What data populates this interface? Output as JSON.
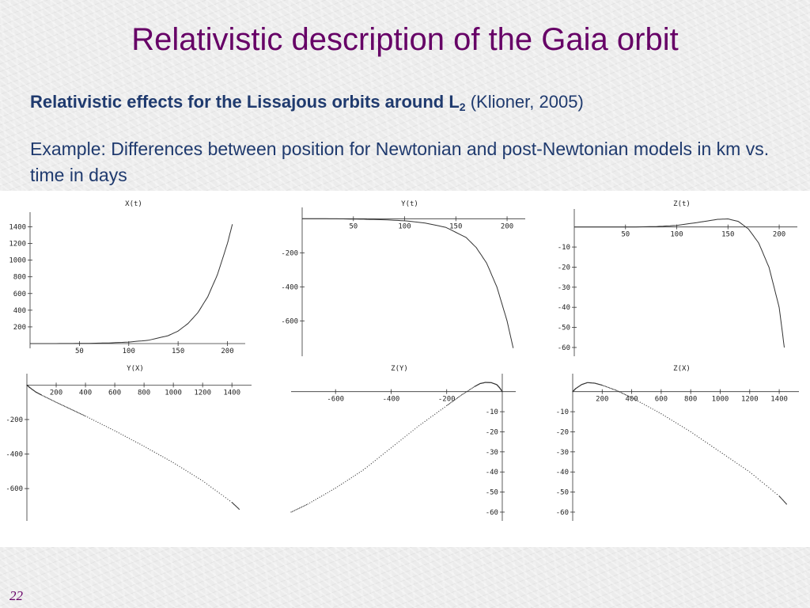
{
  "slide": {
    "title": "Relativistic description of the Gaia orbit",
    "subtitle_bold": "Relativistic effects for the Lissajous orbits around L",
    "subtitle_sub": "2",
    "subtitle_rest": " (Klioner, 2005)",
    "description": "Example: Differences between position for Newtonian and post-Newtonian models in km vs. time in days",
    "page_number": "22"
  },
  "chart_data": [
    {
      "type": "line",
      "title": "X(t)",
      "xlim": [
        0,
        210
      ],
      "ylim": [
        0,
        1480
      ],
      "xticks": [
        50,
        100,
        150,
        200
      ],
      "yticks": [
        200,
        400,
        600,
        800,
        1000,
        1200,
        1400
      ],
      "x": [
        0,
        20,
        40,
        60,
        80,
        100,
        120,
        140,
        150,
        160,
        170,
        180,
        190,
        200,
        205
      ],
      "y": [
        0,
        0,
        1,
        3,
        8,
        18,
        40,
        95,
        150,
        240,
        370,
        560,
        830,
        1200,
        1430
      ]
    },
    {
      "type": "line",
      "title": "Y(t)",
      "xlim": [
        0,
        210
      ],
      "ylim": [
        -780,
        20
      ],
      "xticks": [
        50,
        100,
        150,
        200
      ],
      "yticks": [
        -200,
        -400,
        -600
      ],
      "x": [
        0,
        20,
        40,
        60,
        80,
        100,
        120,
        140,
        160,
        170,
        180,
        190,
        200,
        206
      ],
      "y": [
        0,
        0,
        -1,
        -3,
        -6,
        -12,
        -25,
        -50,
        -110,
        -170,
        -260,
        -400,
        -600,
        -760
      ]
    },
    {
      "type": "line",
      "title": "Z(t)",
      "xlim": [
        0,
        210
      ],
      "ylim": [
        -62,
        5
      ],
      "xticks": [
        50,
        100,
        150,
        200
      ],
      "yticks": [
        -10,
        -20,
        -30,
        -40,
        -50,
        -60
      ],
      "x": [
        0,
        40,
        60,
        80,
        100,
        120,
        140,
        150,
        160,
        170,
        180,
        190,
        200,
        205
      ],
      "y": [
        0,
        0,
        0,
        0.2,
        0.8,
        2.2,
        3.8,
        4.0,
        2.8,
        -1,
        -8,
        -20,
        -40,
        -60
      ]
    },
    {
      "type": "scatter",
      "title": "Y(X)",
      "xlim": [
        0,
        1480
      ],
      "ylim": [
        -760,
        20
      ],
      "xticks": [
        200,
        400,
        600,
        800,
        1000,
        1200,
        1400
      ],
      "yticks": [
        -200,
        -400,
        -600
      ],
      "x": [
        0,
        20,
        60,
        100,
        200,
        300,
        400,
        600,
        800,
        1000,
        1200,
        1400,
        1450
      ],
      "y": [
        0,
        -15,
        -40,
        -58,
        -100,
        -140,
        -180,
        -265,
        -355,
        -450,
        -555,
        -680,
        -720
      ]
    },
    {
      "type": "scatter",
      "title": "Z(Y)",
      "xlim": [
        -760,
        20
      ],
      "ylim": [
        -62,
        5
      ],
      "xticks": [
        -600,
        -400,
        -200
      ],
      "yticks": [
        -10,
        -20,
        -30,
        -40,
        -50,
        -60
      ],
      "x": [
        0,
        -10,
        -20,
        -40,
        -60,
        -80,
        -100,
        -150,
        -200,
        -300,
        -400,
        -500,
        -600,
        -700,
        -760
      ],
      "y": [
        0,
        2,
        3.5,
        4.5,
        4.6,
        4,
        2.5,
        -2,
        -7,
        -17,
        -28,
        -39,
        -48,
        -56,
        -60
      ]
    },
    {
      "type": "scatter",
      "title": "Z(X)",
      "xlim": [
        0,
        1480
      ],
      "ylim": [
        -62,
        5
      ],
      "xticks": [
        200,
        400,
        600,
        800,
        1000,
        1200,
        1400
      ],
      "yticks": [
        -10,
        -20,
        -30,
        -40,
        -50,
        -60
      ],
      "x": [
        0,
        20,
        60,
        100,
        150,
        200,
        300,
        400,
        600,
        800,
        1000,
        1200,
        1400,
        1450
      ],
      "y": [
        0,
        1.5,
        3.5,
        4.5,
        4.2,
        3.2,
        0.5,
        -3,
        -11,
        -20,
        -30,
        -40,
        -52,
        -56
      ]
    }
  ]
}
